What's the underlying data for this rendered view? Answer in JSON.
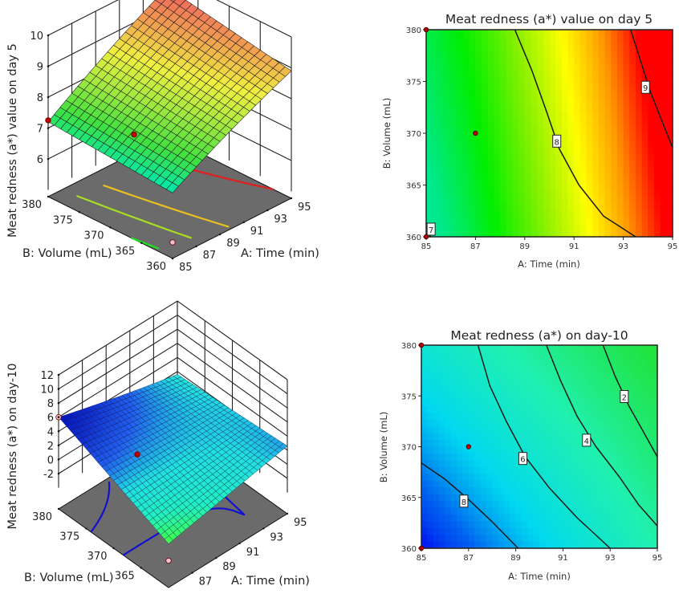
{
  "chart_data": [
    {
      "type": "surface3d",
      "zlabel": "Meat redness (a*) value on day 5",
      "xlabel": "A: Time (min)",
      "ylabel": "B: Volume (mL)",
      "xticks": [
        "85",
        "87",
        "89",
        "91",
        "93",
        "95"
      ],
      "yticks": [
        "360",
        "365",
        "370",
        "375",
        "380"
      ],
      "zticks": [
        "6",
        "7",
        "8",
        "9",
        "10"
      ],
      "xlim": [
        85,
        95
      ],
      "ylim": [
        360,
        380
      ],
      "zlim": [
        5,
        10
      ],
      "corner_z": {
        "a85_b360": 6.9,
        "a95_b360": 8.9,
        "a85_b380": 7.2,
        "a95_b380": 9.6
      },
      "design_points": [
        {
          "a": 85,
          "b": 380,
          "z": 7.25,
          "color": "#c00000"
        },
        {
          "a": 87,
          "b": 370,
          "z": 7.4,
          "color": "#c00000"
        },
        {
          "a": 85,
          "b": 360,
          "z": 5.3,
          "color": "#f4c0d0"
        }
      ],
      "floor_contours": [
        {
          "level": 7,
          "color": "#22dd22"
        },
        {
          "level": 7.5,
          "color": "#aadd22"
        },
        {
          "level": 8,
          "color": "#e8c020"
        },
        {
          "level": 9,
          "color": "#e02020"
        }
      ],
      "colors": {
        "low": "#00e0a0",
        "mid": "#f0f040",
        "high": "#f05050",
        "floor": "#6b6b6b"
      }
    },
    {
      "type": "contour",
      "title": "Meat redness (a*) value on day 5",
      "xlabel": "A: Time (min)",
      "ylabel": "B: Volume (mL)",
      "xticks": [
        "85",
        "87",
        "89",
        "91",
        "93",
        "95"
      ],
      "yticks": [
        "360",
        "365",
        "370",
        "375",
        "380"
      ],
      "xlim": [
        85,
        95
      ],
      "ylim": [
        360,
        380
      ],
      "contours": [
        {
          "level": "7",
          "points": [
            [
              85,
              360.4
            ],
            [
              85.2,
              360
            ]
          ]
        },
        {
          "level": "8",
          "points": [
            [
              88.6,
              380
            ],
            [
              89.3,
              376
            ],
            [
              89.9,
              372
            ],
            [
              90.4,
              368.5
            ],
            [
              91.2,
              365
            ],
            [
              92.2,
              362
            ],
            [
              93.5,
              360
            ]
          ]
        },
        {
          "level": "9",
          "points": [
            [
              93.3,
              380
            ],
            [
              93.7,
              377
            ],
            [
              94.1,
              374
            ],
            [
              94.6,
              371
            ],
            [
              95,
              368.6
            ]
          ]
        }
      ],
      "labels": [
        {
          "text": "7",
          "a": 85.2,
          "b": 360.7
        },
        {
          "text": "8",
          "a": 90.3,
          "b": 369.2
        },
        {
          "text": "9",
          "a": 93.9,
          "b": 374.4
        }
      ],
      "design_points": [
        {
          "a": 85,
          "b": 380
        },
        {
          "a": 87,
          "b": 370
        },
        {
          "a": 85,
          "b": 360
        }
      ],
      "color_scale": [
        "#00e890",
        "#00ee00",
        "#88f000",
        "#ffff00",
        "#ff9900",
        "#ff0000"
      ],
      "zrange": [
        6.9,
        9.6
      ]
    },
    {
      "type": "surface3d",
      "zlabel": "Meat redness (a*) on day-10",
      "xlabel": "A: Time (min)",
      "ylabel": "B: Volume (mL)",
      "xticks": [
        "87",
        "89",
        "91",
        "93",
        "95"
      ],
      "yticks": [
        "365",
        "370",
        "375",
        "380"
      ],
      "zticks": [
        "-2",
        "0",
        "2",
        "4",
        "6",
        "8",
        "10",
        "12"
      ],
      "xlim": [
        85,
        95
      ],
      "ylim": [
        360,
        380
      ],
      "zlim": [
        -4,
        12
      ],
      "corner_z": {
        "a85_b360": -0.8,
        "a95_b360": 2.6,
        "a85_b380": 6.0,
        "a95_b380": 1.6
      },
      "design_points": [
        {
          "a": 85,
          "b": 380,
          "z": 6.0,
          "color": "#f4c0d0"
        },
        {
          "a": 87,
          "b": 370,
          "z": 4.2,
          "color": "#c00000"
        },
        {
          "a": 85,
          "b": 360,
          "z": -3.2,
          "color": "#f4c0d0"
        }
      ],
      "floor_contours": [
        {
          "level": 2,
          "color": "#1010d0"
        },
        {
          "level": 4,
          "color": "#1010d0"
        },
        {
          "level": 6,
          "color": "#1010d0"
        },
        {
          "level": 8,
          "color": "#20c0f0"
        }
      ],
      "colors": {
        "low": "#40ff40",
        "mid": "#20e0e0",
        "high": "#0010c0",
        "floor": "#6b6b6b"
      }
    },
    {
      "type": "contour",
      "title": "Meat redness (a*) on day-10",
      "xlabel": "A: Time (min)",
      "ylabel": "B: Volume (mL)",
      "xticks": [
        "85",
        "87",
        "89",
        "91",
        "93",
        "95"
      ],
      "yticks": [
        "360",
        "365",
        "370",
        "375",
        "380"
      ],
      "xlim": [
        85,
        95
      ],
      "ylim": [
        360,
        380
      ],
      "contours": [
        {
          "level": "8",
          "points": [
            [
              85,
              368.4
            ],
            [
              86,
              366.8
            ],
            [
              87,
              364.8
            ],
            [
              88,
              362.6
            ],
            [
              89.1,
              360
            ]
          ]
        },
        {
          "level": "6",
          "points": [
            [
              87.4,
              380
            ],
            [
              87.9,
              376
            ],
            [
              88.6,
              372.5
            ],
            [
              89.4,
              369
            ],
            [
              90.4,
              366
            ],
            [
              91.6,
              363
            ],
            [
              93,
              360
            ]
          ]
        },
        {
          "level": "4",
          "points": [
            [
              90.3,
              380
            ],
            [
              90.9,
              376.5
            ],
            [
              91.6,
              373
            ],
            [
              92.4,
              370
            ],
            [
              93.4,
              367
            ],
            [
              94.2,
              364.3
            ],
            [
              95,
              362.2
            ]
          ]
        },
        {
          "level": "2",
          "points": [
            [
              92.7,
              380
            ],
            [
              93.2,
              377
            ],
            [
              93.8,
              374
            ],
            [
              94.4,
              371.5
            ],
            [
              95,
              369
            ]
          ]
        }
      ],
      "labels": [
        {
          "text": "8",
          "a": 86.8,
          "b": 364.6
        },
        {
          "text": "6",
          "a": 89.3,
          "b": 368.8
        },
        {
          "text": "4",
          "a": 92.0,
          "b": 370.6
        },
        {
          "text": "2",
          "a": 93.6,
          "b": 374.9
        }
      ],
      "design_points": [
        {
          "a": 85,
          "b": 380
        },
        {
          "a": 87,
          "b": 370
        },
        {
          "a": 85,
          "b": 360
        }
      ],
      "color_scale": [
        "#0010f0",
        "#0020f0",
        "#0060f0",
        "#00d8f0",
        "#20f0b0",
        "#20e020"
      ],
      "zrange": [
        1.6,
        9.8
      ]
    }
  ]
}
